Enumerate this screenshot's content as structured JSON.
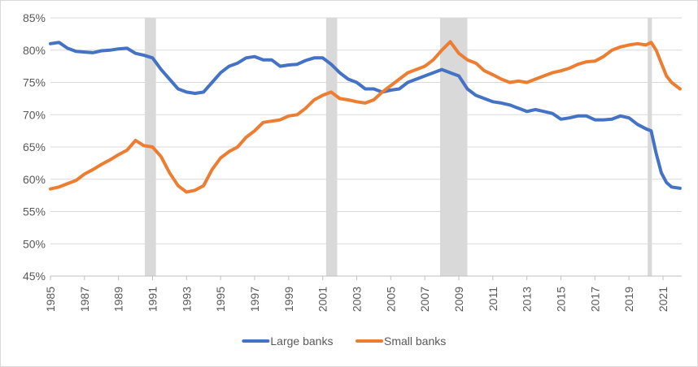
{
  "chart_data": {
    "type": "line",
    "title": "",
    "xlabel": "",
    "ylabel": "",
    "xlim": [
      1985,
      2022.1
    ],
    "ylim": [
      45,
      85
    ],
    "grid": "horizontal",
    "legend_position": "bottom-center",
    "colors": {
      "Large banks": "#4472C4",
      "Small banks": "#ED7D31",
      "recession": "#D9D9D9",
      "grid": "#D9D9D9"
    },
    "y_ticks": [
      "45%",
      "50%",
      "55%",
      "60%",
      "65%",
      "70%",
      "75%",
      "80%",
      "85%"
    ],
    "y_tick_values": [
      45,
      50,
      55,
      60,
      65,
      70,
      75,
      80,
      85
    ],
    "x_ticks": [
      "1985",
      "1987",
      "1989",
      "1991",
      "1993",
      "1995",
      "1997",
      "1999",
      "2001",
      "2003",
      "2005",
      "2007",
      "2009",
      "2011",
      "2013",
      "2015",
      "2017",
      "2019",
      "2021"
    ],
    "recessions": [
      [
        1990.55,
        1991.2
      ],
      [
        2001.2,
        2001.85
      ],
      [
        2007.9,
        2009.5
      ],
      [
        2020.1,
        2020.35
      ]
    ],
    "series": [
      {
        "name": "Large banks",
        "x": [
          1985,
          1985.5,
          1986,
          1986.5,
          1987,
          1987.5,
          1988,
          1988.5,
          1989,
          1989.5,
          1990,
          1990.5,
          1991,
          1991.5,
          1992,
          1992.5,
          1993,
          1993.5,
          1994,
          1994.5,
          1995,
          1995.5,
          1996,
          1996.5,
          1997,
          1997.5,
          1998,
          1998.5,
          1999,
          1999.5,
          2000,
          2000.5,
          2001,
          2001.5,
          2002,
          2002.5,
          2003,
          2003.5,
          2004,
          2004.5,
          2005,
          2005.5,
          2006,
          2006.5,
          2007,
          2007.5,
          2008,
          2008.5,
          2009,
          2009.5,
          2010,
          2010.5,
          2011,
          2011.5,
          2012,
          2012.5,
          2013,
          2013.5,
          2014,
          2014.5,
          2015,
          2015.5,
          2016,
          2016.5,
          2017,
          2017.5,
          2018,
          2018.5,
          2019,
          2019.5,
          2020,
          2020.3,
          2020.6,
          2020.9,
          2021.2,
          2021.5,
          2022
        ],
        "values": [
          81.0,
          81.2,
          80.3,
          79.8,
          79.7,
          79.6,
          79.9,
          80.0,
          80.2,
          80.3,
          79.5,
          79.2,
          78.8,
          77.0,
          75.5,
          74.0,
          73.5,
          73.3,
          73.5,
          75.0,
          76.5,
          77.5,
          78.0,
          78.8,
          79.0,
          78.5,
          78.5,
          77.5,
          77.7,
          77.8,
          78.4,
          78.8,
          78.8,
          77.8,
          76.5,
          75.5,
          75.0,
          74.0,
          74.0,
          73.5,
          73.8,
          74.0,
          75.0,
          75.5,
          76.0,
          76.5,
          77.0,
          76.5,
          76.0,
          74.0,
          73.0,
          72.5,
          72.0,
          71.8,
          71.5,
          71.0,
          70.5,
          70.8,
          70.5,
          70.2,
          69.3,
          69.5,
          69.8,
          69.8,
          69.2,
          69.2,
          69.3,
          69.8,
          69.5,
          68.5,
          67.8,
          67.5,
          64.0,
          61.0,
          59.5,
          58.8,
          58.6
        ]
      },
      {
        "name": "Small banks",
        "x": [
          1985,
          1985.5,
          1986,
          1986.5,
          1987,
          1987.5,
          1988,
          1988.5,
          1989,
          1989.5,
          1990,
          1990.5,
          1991,
          1991.5,
          1992,
          1992.5,
          1993,
          1993.5,
          1994,
          1994.5,
          1995,
          1995.5,
          1996,
          1996.5,
          1997,
          1997.5,
          1998,
          1998.5,
          1999,
          1999.5,
          2000,
          2000.5,
          2001,
          2001.5,
          2002,
          2002.5,
          2003,
          2003.5,
          2004,
          2004.5,
          2005,
          2005.5,
          2006,
          2006.5,
          2007,
          2007.5,
          2008,
          2008.5,
          2009,
          2009.5,
          2010,
          2010.5,
          2011,
          2011.5,
          2012,
          2012.5,
          2013,
          2013.5,
          2014,
          2014.5,
          2015,
          2015.5,
          2016,
          2016.5,
          2017,
          2017.5,
          2018,
          2018.5,
          2019,
          2019.5,
          2020,
          2020.3,
          2020.6,
          2020.9,
          2021.2,
          2021.5,
          2022
        ],
        "values": [
          58.5,
          58.8,
          59.3,
          59.8,
          60.8,
          61.5,
          62.3,
          63.0,
          63.8,
          64.5,
          66.0,
          65.2,
          65.0,
          63.5,
          61.0,
          59.0,
          58.0,
          58.3,
          59.0,
          61.5,
          63.3,
          64.3,
          65.0,
          66.5,
          67.5,
          68.8,
          69.0,
          69.2,
          69.8,
          70.0,
          71.0,
          72.3,
          73.0,
          73.5,
          72.5,
          72.3,
          72.0,
          71.8,
          72.3,
          73.5,
          74.5,
          75.5,
          76.5,
          77.0,
          77.5,
          78.5,
          80.0,
          81.3,
          79.5,
          78.5,
          78.0,
          76.8,
          76.2,
          75.5,
          75.0,
          75.2,
          75.0,
          75.5,
          76.0,
          76.5,
          76.8,
          77.2,
          77.8,
          78.2,
          78.3,
          79.0,
          80.0,
          80.5,
          80.8,
          81.0,
          80.8,
          81.2,
          80.0,
          78.0,
          76.0,
          75.0,
          74.0
        ]
      }
    ]
  }
}
